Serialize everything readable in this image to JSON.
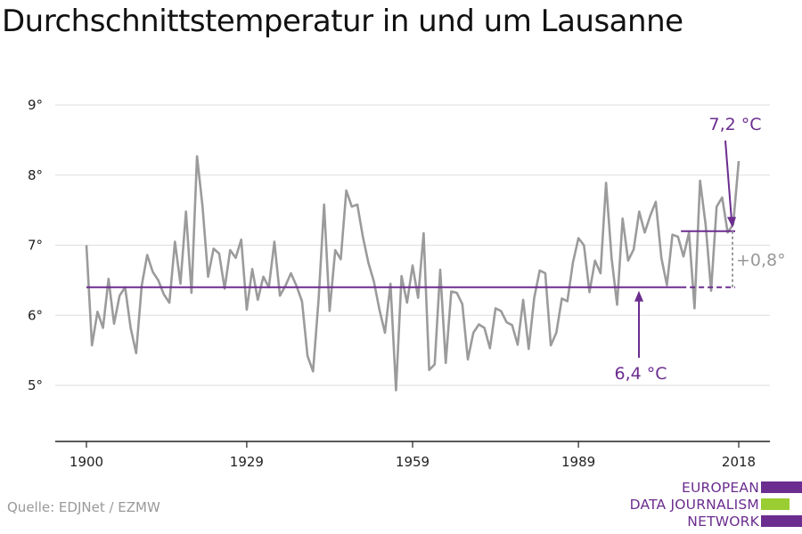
{
  "title": "Durchschnittstemperatur in und um Lausanne",
  "source": "Quelle: EDJNet / EZMW",
  "logo": {
    "lines": [
      "EUROPEAN",
      "DATA JOURNALISM",
      "NETWORK"
    ],
    "colors": [
      "#6b2d8f",
      "#9acd32",
      "#6b2d8f"
    ]
  },
  "colors": {
    "series": "#9b9b9b",
    "accent": "#6b2d8f",
    "delta": "#999999",
    "grid": "#dddddd",
    "axis": "#222222"
  },
  "chart_data": {
    "type": "line",
    "title": "Durchschnittstemperatur in und um Lausanne",
    "xlabel": "",
    "ylabel": "",
    "xlim": [
      1900,
      2018
    ],
    "ylim": [
      4.2,
      9.0
    ],
    "x_ticks": [
      1900,
      1929,
      1959,
      1989,
      2018
    ],
    "y_ticks": [
      5,
      6,
      7,
      8,
      9
    ],
    "y_tick_labels": [
      "5°",
      "6°",
      "7°",
      "8°",
      "9°"
    ],
    "grid": true,
    "x": [
      1900,
      1901,
      1902,
      1903,
      1904,
      1905,
      1906,
      1907,
      1908,
      1909,
      1910,
      1911,
      1912,
      1913,
      1914,
      1915,
      1916,
      1917,
      1918,
      1919,
      1920,
      1921,
      1922,
      1923,
      1924,
      1925,
      1926,
      1927,
      1928,
      1929,
      1930,
      1931,
      1932,
      1933,
      1934,
      1935,
      1936,
      1937,
      1938,
      1939,
      1940,
      1941,
      1942,
      1943,
      1944,
      1945,
      1946,
      1947,
      1948,
      1949,
      1950,
      1951,
      1952,
      1953,
      1954,
      1955,
      1956,
      1957,
      1958,
      1959,
      1960,
      1961,
      1962,
      1963,
      1964,
      1965,
      1966,
      1967,
      1968,
      1969,
      1970,
      1971,
      1972,
      1973,
      1974,
      1975,
      1976,
      1977,
      1978,
      1979,
      1980,
      1981,
      1982,
      1983,
      1984,
      1985,
      1986,
      1987,
      1988,
      1989,
      1990,
      1991,
      1992,
      1993,
      1994,
      1995,
      1996,
      1997,
      1998,
      1999,
      2000,
      2001,
      2002,
      2003,
      2004,
      2005,
      2006,
      2007,
      2008,
      2009,
      2010,
      2011,
      2012,
      2013,
      2014,
      2015,
      2016,
      2017,
      2018
    ],
    "series": [
      {
        "values": [
          7.0,
          5.57,
          6.05,
          5.82,
          6.52,
          5.88,
          6.28,
          6.4,
          5.82,
          5.46,
          6.42,
          6.86,
          6.62,
          6.5,
          6.3,
          6.18,
          7.05,
          6.45,
          7.48,
          6.32,
          8.27,
          7.55,
          6.55,
          6.95,
          6.88,
          6.38,
          6.93,
          6.82,
          7.08,
          6.08,
          6.66,
          6.22,
          6.55,
          6.4,
          7.05,
          6.28,
          6.42,
          6.6,
          6.42,
          6.2,
          5.42,
          5.2,
          6.22,
          7.58,
          6.06,
          6.93,
          6.8,
          7.78,
          7.55,
          7.58,
          7.12,
          6.75,
          6.48,
          6.08,
          5.75,
          6.45,
          4.93,
          6.56,
          6.18,
          6.71,
          6.25,
          7.17,
          5.22,
          5.3,
          6.65,
          5.32,
          6.34,
          6.32,
          6.16,
          5.37,
          5.75,
          5.87,
          5.82,
          5.53,
          6.1,
          6.06,
          5.9,
          5.86,
          5.58,
          6.22,
          5.52,
          6.25,
          6.64,
          6.6,
          5.57,
          5.75,
          6.24,
          6.2,
          6.75,
          7.1,
          7.0,
          6.33,
          6.78,
          6.6,
          7.89,
          6.82,
          6.15,
          7.38,
          6.78,
          6.94,
          7.48,
          7.18,
          7.42,
          7.62,
          6.82,
          6.43,
          7.15,
          7.12,
          6.84,
          7.18,
          6.1,
          7.92,
          7.3,
          6.35,
          7.55,
          7.68,
          7.18,
          7.3,
          8.2
        ]
      }
    ],
    "annotations": {
      "baseline": {
        "value": 6.4,
        "label": "6,4 °C",
        "from": 1900,
        "to": 2004,
        "dashed_to": 2018
      },
      "recent": {
        "value": 7.2,
        "label": "7,2 °C",
        "from": 2004,
        "to": 2018
      },
      "delta_label": "+0,8°"
    }
  }
}
